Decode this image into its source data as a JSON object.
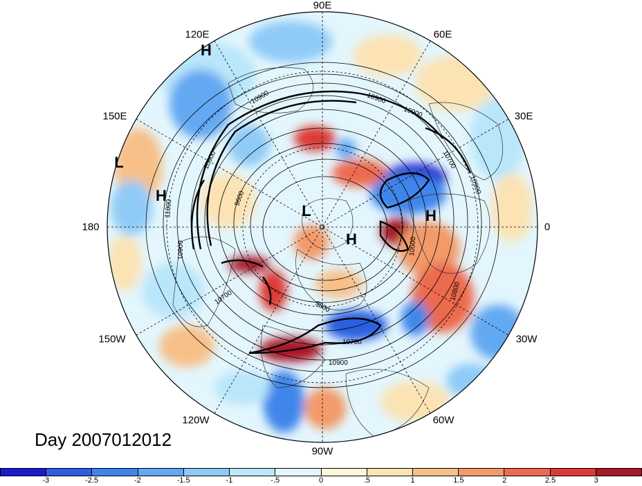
{
  "title": "Day 2007012012",
  "longitude_labels": [
    {
      "id": "90e",
      "text": "90E"
    },
    {
      "id": "60e",
      "text": "60E"
    },
    {
      "id": "30e",
      "text": "30E"
    },
    {
      "id": "0",
      "text": "0"
    },
    {
      "id": "30w",
      "text": "30W"
    },
    {
      "id": "60w",
      "text": "60W"
    },
    {
      "id": "90w",
      "text": "90W"
    },
    {
      "id": "120w",
      "text": "120W"
    },
    {
      "id": "150w",
      "text": "150W"
    },
    {
      "id": "180",
      "text": "180"
    },
    {
      "id": "150e",
      "text": "150E"
    },
    {
      "id": "120e",
      "text": "120E"
    }
  ],
  "pressure_centers": [
    {
      "id": "h1",
      "text": "H"
    },
    {
      "id": "l1",
      "text": "L"
    },
    {
      "id": "h2",
      "text": "H"
    },
    {
      "id": "l2",
      "text": "L"
    },
    {
      "id": "h3",
      "text": "H"
    },
    {
      "id": "h4",
      "text": "H"
    }
  ],
  "contour_labels": [
    {
      "id": "c1",
      "text": "10900"
    },
    {
      "id": "c2",
      "text": "10900"
    },
    {
      "id": "c3",
      "text": "10900"
    },
    {
      "id": "c4",
      "text": "10900"
    },
    {
      "id": "c5",
      "text": "10700"
    },
    {
      "id": "c6",
      "text": "10900"
    },
    {
      "id": "c7",
      "text": "10900"
    },
    {
      "id": "c8",
      "text": "11000"
    },
    {
      "id": "c9",
      "text": "10700"
    },
    {
      "id": "c10",
      "text": "9600"
    },
    {
      "id": "c11",
      "text": "10500"
    },
    {
      "id": "c12",
      "text": "10800"
    },
    {
      "id": "c13",
      "text": "10900"
    },
    {
      "id": "c14",
      "text": "10700"
    },
    {
      "id": "c15",
      "text": "9800"
    }
  ],
  "colorbar": {
    "colors": [
      "#1a1acf",
      "#2b5fe0",
      "#3f86ea",
      "#63a8f2",
      "#8fcbf7",
      "#b9e6fa",
      "#e3f6fd",
      "#fdf7dc",
      "#fbe3b4",
      "#f7c088",
      "#f29a6b",
      "#ec6b4e",
      "#dc3a36",
      "#a81826"
    ],
    "ticks": [
      "-3",
      "-2.5",
      "-2",
      "-1.5",
      "-1",
      "-.5",
      "0",
      ".5",
      "1",
      "1.5",
      "2",
      "2.5",
      "3"
    ]
  }
}
